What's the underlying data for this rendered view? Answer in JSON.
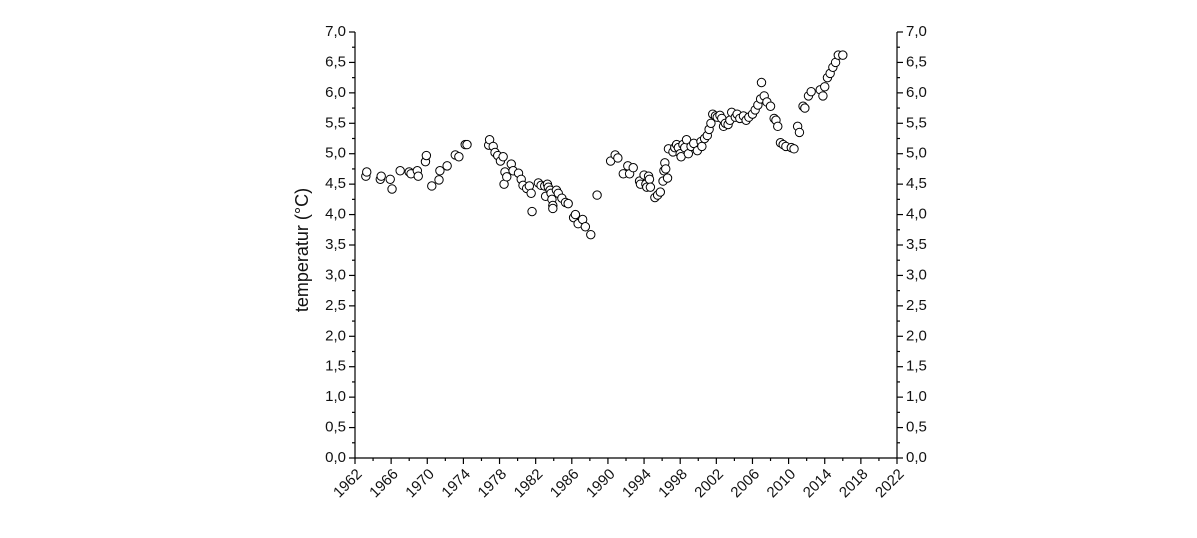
{
  "chart_data": {
    "type": "scatter",
    "ylabel": "temperatur (°C)",
    "xlabel": "",
    "xlim": [
      1962,
      2022
    ],
    "ylim": [
      0,
      7
    ],
    "x_ticks": [
      "1962",
      "1966",
      "1970",
      "1974",
      "1978",
      "1982",
      "1986",
      "1990",
      "1994",
      "1998",
      "2002",
      "2006",
      "2010",
      "2014",
      "2018",
      "2022"
    ],
    "y_ticks": [
      "0,0",
      "0,5",
      "1,0",
      "1,5",
      "2,0",
      "2,5",
      "3,0",
      "3,5",
      "4,0",
      "4,5",
      "5,0",
      "5,5",
      "6,0",
      "6,5",
      "7,0"
    ],
    "right_axis_mirrored": true,
    "grid": false,
    "marker": "open-circle",
    "points": [
      [
        1963.2,
        4.63
      ],
      [
        1963.3,
        4.7
      ],
      [
        1964.8,
        4.58
      ],
      [
        1964.9,
        4.63
      ],
      [
        1965.9,
        4.58
      ],
      [
        1966.1,
        4.42
      ],
      [
        1967.0,
        4.72
      ],
      [
        1968.0,
        4.7
      ],
      [
        1968.2,
        4.67
      ],
      [
        1968.9,
        4.72
      ],
      [
        1969.0,
        4.63
      ],
      [
        1969.8,
        4.87
      ],
      [
        1969.9,
        4.97
      ],
      [
        1970.5,
        4.47
      ],
      [
        1971.3,
        4.57
      ],
      [
        1971.4,
        4.72
      ],
      [
        1972.2,
        4.8
      ],
      [
        1973.1,
        4.98
      ],
      [
        1973.5,
        4.95
      ],
      [
        1974.2,
        5.15
      ],
      [
        1974.4,
        5.15
      ],
      [
        1976.8,
        5.14
      ],
      [
        1976.9,
        5.23
      ],
      [
        1977.3,
        5.12
      ],
      [
        1977.5,
        5.02
      ],
      [
        1977.8,
        4.97
      ],
      [
        1978.1,
        4.88
      ],
      [
        1978.4,
        4.95
      ],
      [
        1978.5,
        4.5
      ],
      [
        1978.6,
        4.7
      ],
      [
        1978.8,
        4.62
      ],
      [
        1979.3,
        4.83
      ],
      [
        1979.5,
        4.72
      ],
      [
        1980.1,
        4.68
      ],
      [
        1980.4,
        4.58
      ],
      [
        1980.6,
        4.48
      ],
      [
        1981.0,
        4.43
      ],
      [
        1981.3,
        4.47
      ],
      [
        1981.5,
        4.35
      ],
      [
        1981.6,
        4.05
      ],
      [
        1982.3,
        4.52
      ],
      [
        1982.6,
        4.48
      ],
      [
        1983.0,
        4.47
      ],
      [
        1983.1,
        4.3
      ],
      [
        1983.3,
        4.5
      ],
      [
        1983.4,
        4.45
      ],
      [
        1983.6,
        4.4
      ],
      [
        1983.7,
        4.35
      ],
      [
        1983.8,
        4.25
      ],
      [
        1983.9,
        4.15
      ],
      [
        1983.9,
        4.1
      ],
      [
        1984.3,
        4.4
      ],
      [
        1984.5,
        4.35
      ],
      [
        1984.9,
        4.27
      ],
      [
        1985.3,
        4.2
      ],
      [
        1985.6,
        4.18
      ],
      [
        1986.2,
        3.95
      ],
      [
        1986.4,
        4.0
      ],
      [
        1986.7,
        3.85
      ],
      [
        1987.2,
        3.92
      ],
      [
        1987.5,
        3.8
      ],
      [
        1988.1,
        3.67
      ],
      [
        1988.8,
        4.32
      ],
      [
        1990.3,
        4.88
      ],
      [
        1990.8,
        4.98
      ],
      [
        1991.1,
        4.93
      ],
      [
        1991.7,
        4.67
      ],
      [
        1992.2,
        4.8
      ],
      [
        1992.4,
        4.67
      ],
      [
        1992.8,
        4.77
      ],
      [
        1993.5,
        4.55
      ],
      [
        1993.6,
        4.5
      ],
      [
        1994.0,
        4.65
      ],
      [
        1994.2,
        4.5
      ],
      [
        1994.3,
        4.45
      ],
      [
        1994.5,
        4.63
      ],
      [
        1994.6,
        4.58
      ],
      [
        1994.7,
        4.45
      ],
      [
        1995.2,
        4.28
      ],
      [
        1995.5,
        4.32
      ],
      [
        1995.8,
        4.37
      ],
      [
        1996.1,
        4.55
      ],
      [
        1996.2,
        4.72
      ],
      [
        1996.3,
        4.85
      ],
      [
        1996.4,
        4.75
      ],
      [
        1996.6,
        4.6
      ],
      [
        1996.7,
        5.08
      ],
      [
        1997.2,
        5.03
      ],
      [
        1997.4,
        5.1
      ],
      [
        1997.6,
        5.15
      ],
      [
        1997.8,
        5.1
      ],
      [
        1998.0,
        5.0
      ],
      [
        1998.1,
        4.95
      ],
      [
        1998.3,
        5.15
      ],
      [
        1998.5,
        5.1
      ],
      [
        1998.7,
        5.23
      ],
      [
        1998.9,
        5.0
      ],
      [
        1999.2,
        5.12
      ],
      [
        1999.5,
        5.17
      ],
      [
        1999.9,
        5.05
      ],
      [
        2000.3,
        5.2
      ],
      [
        2000.4,
        5.12
      ],
      [
        2000.7,
        5.25
      ],
      [
        2001.0,
        5.3
      ],
      [
        2001.2,
        5.4
      ],
      [
        2001.4,
        5.5
      ],
      [
        2001.6,
        5.65
      ],
      [
        2001.9,
        5.62
      ],
      [
        2002.1,
        5.6
      ],
      [
        2002.4,
        5.63
      ],
      [
        2002.6,
        5.58
      ],
      [
        2002.8,
        5.45
      ],
      [
        2003.0,
        5.5
      ],
      [
        2003.3,
        5.48
      ],
      [
        2003.5,
        5.55
      ],
      [
        2003.7,
        5.68
      ],
      [
        2004.1,
        5.6
      ],
      [
        2004.3,
        5.65
      ],
      [
        2004.6,
        5.58
      ],
      [
        2005.0,
        5.62
      ],
      [
        2005.3,
        5.55
      ],
      [
        2005.6,
        5.6
      ],
      [
        2006.0,
        5.65
      ],
      [
        2006.3,
        5.72
      ],
      [
        2006.6,
        5.8
      ],
      [
        2006.9,
        5.9
      ],
      [
        2007.0,
        6.17
      ],
      [
        2007.3,
        5.95
      ],
      [
        2007.6,
        5.85
      ],
      [
        2008.0,
        5.78
      ],
      [
        2008.4,
        5.58
      ],
      [
        2008.6,
        5.55
      ],
      [
        2008.8,
        5.45
      ],
      [
        2009.1,
        5.18
      ],
      [
        2009.4,
        5.15
      ],
      [
        2009.7,
        5.12
      ],
      [
        2010.3,
        5.1
      ],
      [
        2010.6,
        5.08
      ],
      [
        2011.0,
        5.45
      ],
      [
        2011.2,
        5.35
      ],
      [
        2011.6,
        5.78
      ],
      [
        2011.8,
        5.75
      ],
      [
        2012.2,
        5.95
      ],
      [
        2012.5,
        6.02
      ],
      [
        2013.5,
        6.05
      ],
      [
        2013.8,
        5.95
      ],
      [
        2014.0,
        6.1
      ],
      [
        2014.3,
        6.25
      ],
      [
        2014.6,
        6.32
      ],
      [
        2014.9,
        6.42
      ],
      [
        2015.2,
        6.5
      ],
      [
        2015.5,
        6.62
      ],
      [
        2016.0,
        6.62
      ]
    ]
  }
}
